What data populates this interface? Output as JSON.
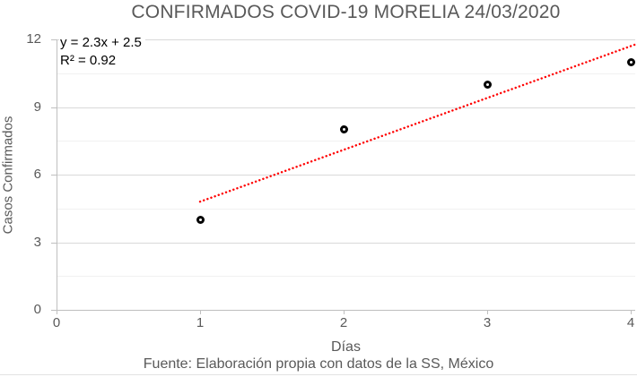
{
  "title": "CONFIRMADOS COVID-19 MORELIA 24/03/2020",
  "footer": "Fuente: Elaboración propia con datos de la SS, México",
  "chart_data": {
    "type": "scatter",
    "title": "CONFIRMADOS COVID-19 MORELIA 24/03/2020",
    "xlabel": "Días",
    "ylabel": "Casos Confirmados",
    "points": [
      {
        "x": 1,
        "y": 4
      },
      {
        "x": 2,
        "y": 8
      },
      {
        "x": 3,
        "y": 10
      },
      {
        "x": 4,
        "y": 11
      }
    ],
    "xlim": [
      0,
      4
    ],
    "ylim": [
      0,
      12
    ],
    "x_ticks": [
      0,
      1,
      2,
      3,
      4
    ],
    "y_ticks": [
      0,
      3,
      6,
      9,
      12
    ],
    "y_minor_ticks": [
      1.5,
      4.5,
      7.5,
      10.5
    ],
    "grid": "horizontal major and minor, no vertical gridlines",
    "legend": "none",
    "marker": {
      "shape": "open-circle",
      "color": "#000000"
    },
    "trendline": {
      "label_equation": "y = 2.3x + 2.5",
      "label_r2": "R² = 0.92",
      "slope": 2.3,
      "intercept": 2.5,
      "x_start": 1,
      "x_end": 4.03,
      "style": "dotted",
      "color": "#ff0000"
    }
  },
  "colors": {
    "title_text": "#595959",
    "axis_text": "#595959",
    "equation_text": "#000000",
    "axis_line": "#bfbfbf",
    "grid_major": "#d9d9d9",
    "grid_minor": "#f1f1f1",
    "trendline": "#ff0000",
    "marker": "#000000",
    "bottom_border": "#e2e2e2"
  }
}
